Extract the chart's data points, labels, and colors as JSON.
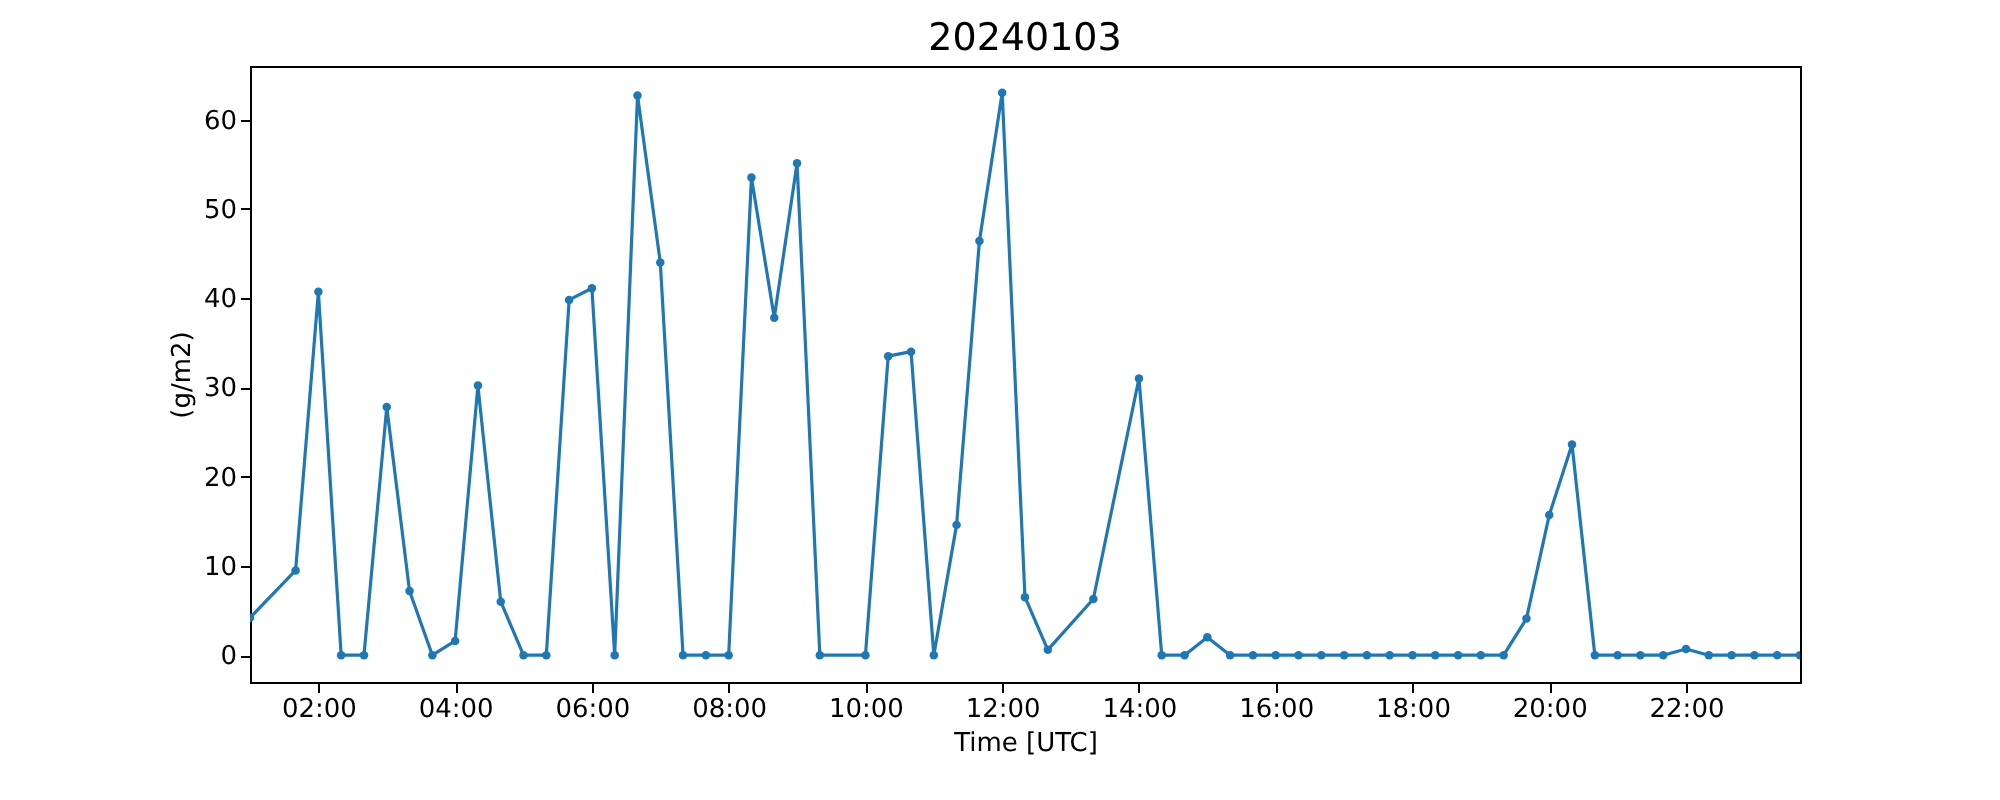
{
  "chart_data": {
    "type": "line",
    "title": "20240103",
    "xlabel": "Time [UTC]",
    "ylabel": "(g/m2)",
    "x": [
      1,
      1.667,
      2,
      2.333,
      2.667,
      3,
      3.333,
      3.667,
      4,
      4.333,
      4.667,
      5,
      5.333,
      5.667,
      6,
      6.333,
      6.667,
      7,
      7.333,
      7.667,
      8,
      8.333,
      8.667,
      9,
      9.333,
      10,
      10.333,
      10.667,
      11,
      11.333,
      11.667,
      12,
      12.333,
      12.667,
      13.333,
      14,
      14.333,
      14.667,
      15,
      15.333,
      15.667,
      16,
      16.333,
      16.667,
      17,
      17.333,
      17.667,
      18,
      18.333,
      18.667,
      19,
      19.333,
      19.667,
      20,
      20.333,
      20.667,
      21,
      21.333,
      21.667,
      22,
      22.333,
      22.667,
      23,
      23.333,
      23.667
    ],
    "series": [
      {
        "color": "#1f77b4",
        "values": [
          4.2,
          9.5,
          40.7,
          0,
          0,
          27.8,
          7.2,
          0,
          1.6,
          30.2,
          6,
          0,
          0,
          39.8,
          41.1,
          0,
          62.7,
          44,
          0,
          0,
          0,
          53.5,
          37.8,
          55.1,
          0,
          0,
          33.5,
          34,
          0,
          14.6,
          46.4,
          63,
          6.5,
          0.6,
          6.3,
          31,
          0,
          0,
          2,
          0,
          0,
          0,
          0,
          0,
          0,
          0,
          0,
          0,
          0,
          0,
          0,
          0,
          4.1,
          15.7,
          23.6,
          0,
          0,
          0,
          0,
          0.7,
          0,
          0,
          0,
          0,
          0
        ]
      }
    ],
    "xlim": [
      1,
      23.667
    ],
    "ylim": [
      -3,
      66
    ],
    "xticks": [
      {
        "value": 2,
        "label": "02:00"
      },
      {
        "value": 4,
        "label": "04:00"
      },
      {
        "value": 6,
        "label": "06:00"
      },
      {
        "value": 8,
        "label": "08:00"
      },
      {
        "value": 10,
        "label": "10:00"
      },
      {
        "value": 12,
        "label": "12:00"
      },
      {
        "value": 14,
        "label": "14:00"
      },
      {
        "value": 16,
        "label": "16:00"
      },
      {
        "value": 18,
        "label": "18:00"
      },
      {
        "value": 20,
        "label": "20:00"
      },
      {
        "value": 22,
        "label": "22:00"
      }
    ],
    "yticks": [
      0,
      10,
      20,
      30,
      40,
      50,
      60
    ],
    "grid": false,
    "marker": "circle",
    "line_style": "solid"
  }
}
